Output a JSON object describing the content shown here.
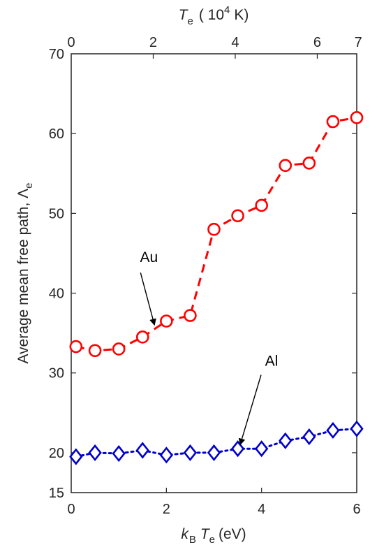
{
  "chart_data": {
    "type": "line",
    "x_axis": {
      "label_prefix": "k",
      "label_sub_b": "B",
      "label_t": "T",
      "label_sub_e": "e",
      "label_suffix": "(eV)",
      "range": [
        0,
        6
      ],
      "ticks": [
        0,
        2,
        4,
        6
      ]
    },
    "top_axis": {
      "label_t": "T",
      "label_sub_e": "e",
      "label_open": "( 10",
      "label_exp": "4",
      "label_close": "K)",
      "ticks": [
        0,
        2,
        4,
        6,
        7
      ],
      "tick_ev": [
        0,
        1.7235,
        3.447,
        5.1705,
        6.0322
      ]
    },
    "y_axis": {
      "label_main": "Average mean free path, ",
      "label_symbol": "Λ",
      "label_sub": "e",
      "range": [
        15,
        70
      ],
      "ticks": [
        15,
        20,
        30,
        40,
        50,
        60,
        70
      ]
    },
    "grid": false,
    "series": [
      {
        "name": "Au",
        "color": "#ff0000",
        "marker": "circle",
        "line_style": "dashed",
        "x": [
          0.1,
          0.5,
          1.0,
          1.5,
          2.0,
          2.5,
          3.0,
          3.5,
          4.0,
          4.5,
          5.0,
          5.5,
          6.0
        ],
        "y": [
          33.3,
          32.8,
          33.0,
          34.5,
          36.5,
          37.2,
          48.0,
          49.7,
          51.0,
          56.0,
          56.3,
          61.5,
          62.0
        ]
      },
      {
        "name": "Al",
        "color": "#0000cc",
        "marker": "diamond",
        "line_style": "dotted",
        "x": [
          0.1,
          0.5,
          1.0,
          1.5,
          2.0,
          2.5,
          3.0,
          3.5,
          4.0,
          4.5,
          5.0,
          5.5,
          6.0
        ],
        "y": [
          19.5,
          20.0,
          19.9,
          20.3,
          19.7,
          20.0,
          20.0,
          20.5,
          20.5,
          21.5,
          22.0,
          22.8,
          23.0
        ]
      }
    ],
    "annotations": [
      {
        "text": "Au",
        "series": "Au",
        "x": 1.75,
        "y": 36.0
      },
      {
        "text": "Al",
        "series": "Al",
        "x": 3.55,
        "y": 21.0
      }
    ]
  }
}
